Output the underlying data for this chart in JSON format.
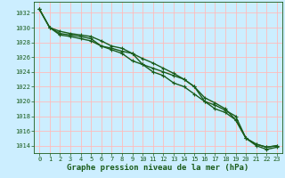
{
  "bg_color": "#cceeff",
  "grid_color": "#ffbbbb",
  "line_color": "#1a5c1a",
  "marker_color": "#1a5c1a",
  "xlabel": "Graphe pression niveau de la mer (hPa)",
  "xlabel_fontsize": 6.5,
  "xlim": [
    -0.5,
    23.5
  ],
  "ylim": [
    1013.0,
    1033.5
  ],
  "yticks": [
    1014,
    1016,
    1018,
    1020,
    1022,
    1024,
    1026,
    1028,
    1030,
    1032
  ],
  "xticks": [
    0,
    1,
    2,
    3,
    4,
    5,
    6,
    7,
    8,
    9,
    10,
    11,
    12,
    13,
    14,
    15,
    16,
    17,
    18,
    19,
    20,
    21,
    22,
    23
  ],
  "series1": [
    1032.5,
    1030.0,
    1029.2,
    1029.0,
    1028.8,
    1028.5,
    1027.5,
    1027.2,
    1026.8,
    1026.5,
    1025.0,
    1024.5,
    1024.0,
    1023.5,
    1023.0,
    1022.0,
    1020.0,
    1019.5,
    1018.8,
    1018.0,
    1015.0,
    1014.2,
    1013.8,
    1014.0
  ],
  "series2": [
    1032.5,
    1030.0,
    1029.0,
    1028.8,
    1028.5,
    1028.2,
    1027.5,
    1027.0,
    1026.5,
    1025.5,
    1025.0,
    1024.0,
    1023.5,
    1022.5,
    1022.0,
    1021.0,
    1020.0,
    1019.0,
    1018.5,
    1017.5,
    1015.0,
    1014.0,
    1013.5,
    1013.8
  ],
  "series3": [
    1032.5,
    1030.0,
    1029.5,
    1029.2,
    1029.0,
    1028.8,
    1028.2,
    1027.5,
    1027.2,
    1026.5,
    1025.8,
    1025.2,
    1024.5,
    1023.8,
    1023.0,
    1022.0,
    1020.5,
    1019.8,
    1019.0,
    1017.5,
    1015.0,
    1014.2,
    1013.8,
    1014.0
  ]
}
